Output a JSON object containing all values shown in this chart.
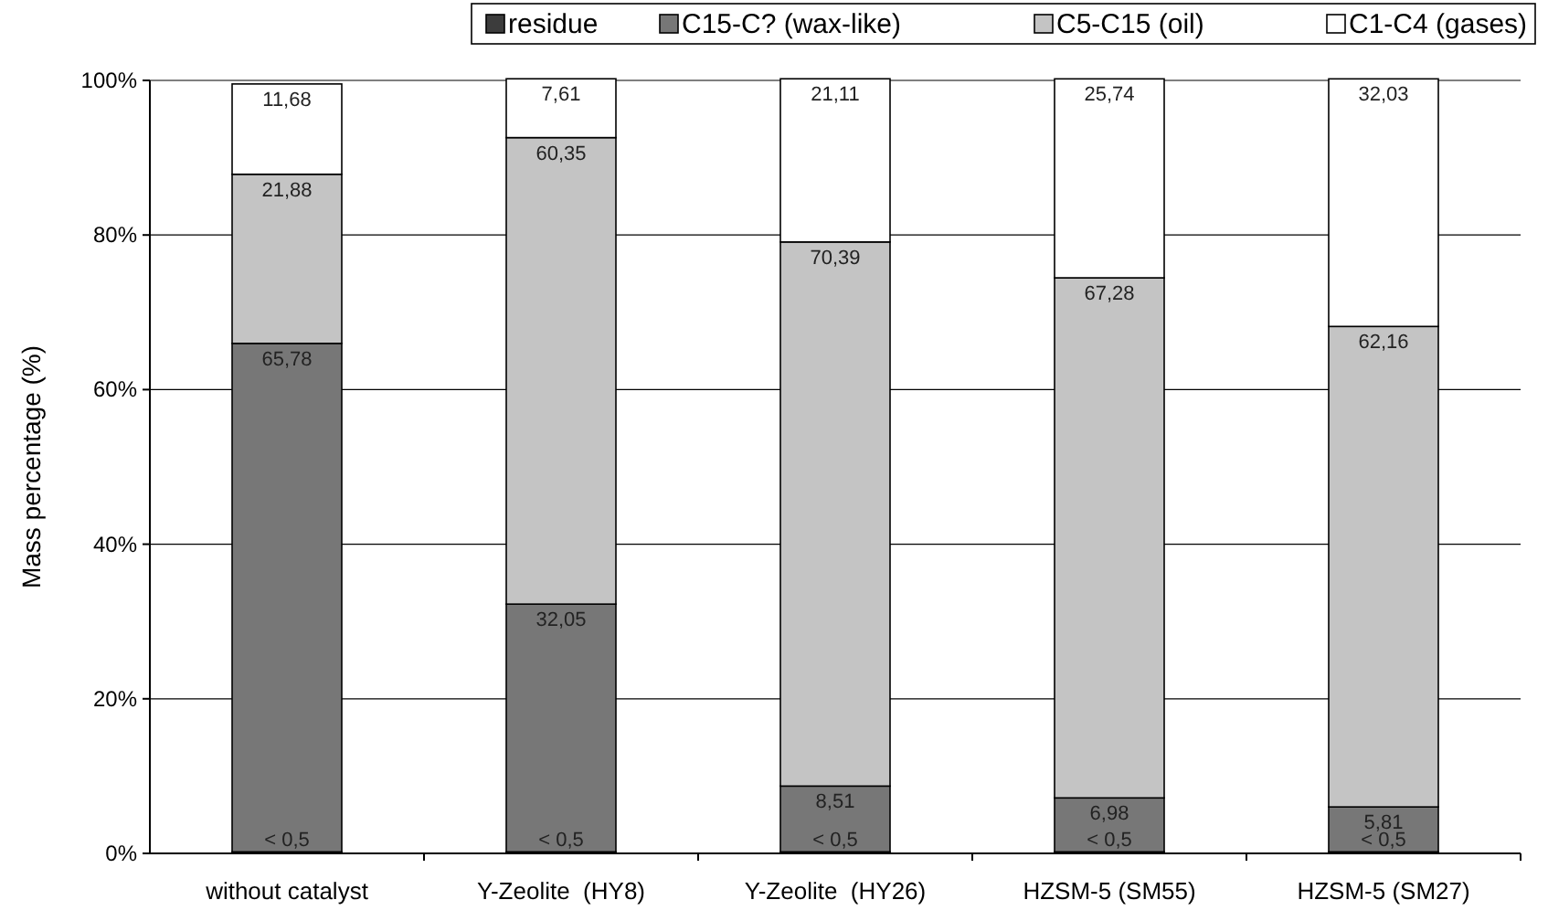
{
  "chart_data": {
    "type": "bar",
    "stacked": true,
    "ylabel": "Mass percentage (%)",
    "categories": [
      "without catalyst",
      "Y-Zeolite  (HY8)",
      "Y-Zeolite  (HY26)",
      "HZSM-5 (SM55)",
      "HZSM-5 (SM27)"
    ],
    "series": [
      {
        "name": "residue",
        "color": "#3c3c3c",
        "values": [
          0.2,
          0.2,
          0.2,
          0.2,
          0.2
        ],
        "value_labels": [
          "< 0,5",
          "< 0,5",
          "< 0,5",
          "< 0,5",
          "< 0,5"
        ]
      },
      {
        "name": "C15-C? (wax-like)",
        "color": "#777777",
        "values": [
          65.78,
          32.05,
          8.51,
          6.98,
          5.81
        ],
        "value_labels": [
          "65,78",
          "32,05",
          "8,51",
          "6,98",
          "5,81"
        ]
      },
      {
        "name": "C5-C15 (oil)",
        "color": "#c4c4c4",
        "values": [
          21.88,
          60.35,
          70.39,
          67.28,
          62.16
        ],
        "value_labels": [
          "21,88",
          "60,35",
          "70,39",
          "67,28",
          "62,16"
        ]
      },
      {
        "name": "C1-C4 (gases)",
        "color": "#ffffff",
        "values": [
          11.68,
          7.61,
          21.11,
          25.74,
          32.03
        ],
        "value_labels": [
          "11,68",
          "7,61",
          "21,11",
          "25,74",
          "32,03"
        ]
      }
    ],
    "ylim": [
      0,
      100
    ],
    "yticks": [
      {
        "value": 0,
        "label": "0%"
      },
      {
        "value": 20,
        "label": "20%"
      },
      {
        "value": 40,
        "label": "40%"
      },
      {
        "value": 60,
        "label": "60%"
      },
      {
        "value": 80,
        "label": "80%"
      },
      {
        "value": 100,
        "label": "100%"
      }
    ],
    "grid": "y",
    "legend": "top"
  }
}
